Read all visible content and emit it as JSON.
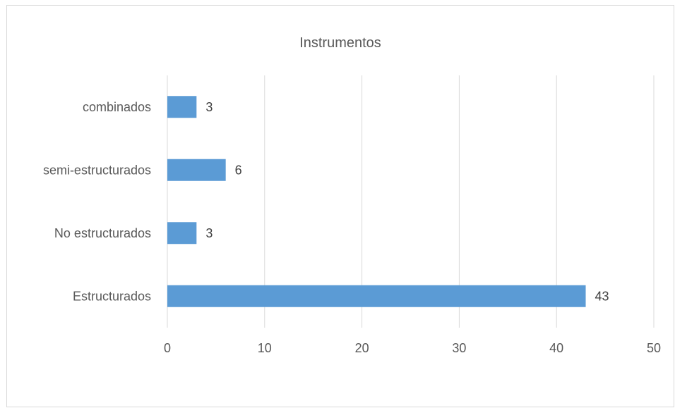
{
  "chart_data": {
    "type": "bar",
    "orientation": "horizontal",
    "title": "Instrumentos",
    "categories": [
      "Estructurados",
      "No estructurados",
      "semi-estructurados",
      "combinados"
    ],
    "values": [
      43,
      3,
      6,
      3
    ],
    "data_labels": [
      "43",
      "3",
      "6",
      "3"
    ],
    "xlim": [
      0,
      50
    ],
    "xticks": [
      0,
      10,
      20,
      30,
      40,
      50
    ],
    "xtick_labels": [
      "0",
      "10",
      "20",
      "30",
      "40",
      "50"
    ],
    "xlabel": "",
    "ylabel": "",
    "grid": "vertical",
    "legend": "none",
    "bar_color": "#5b9bd5",
    "grid_color": "#d9d9d9"
  }
}
